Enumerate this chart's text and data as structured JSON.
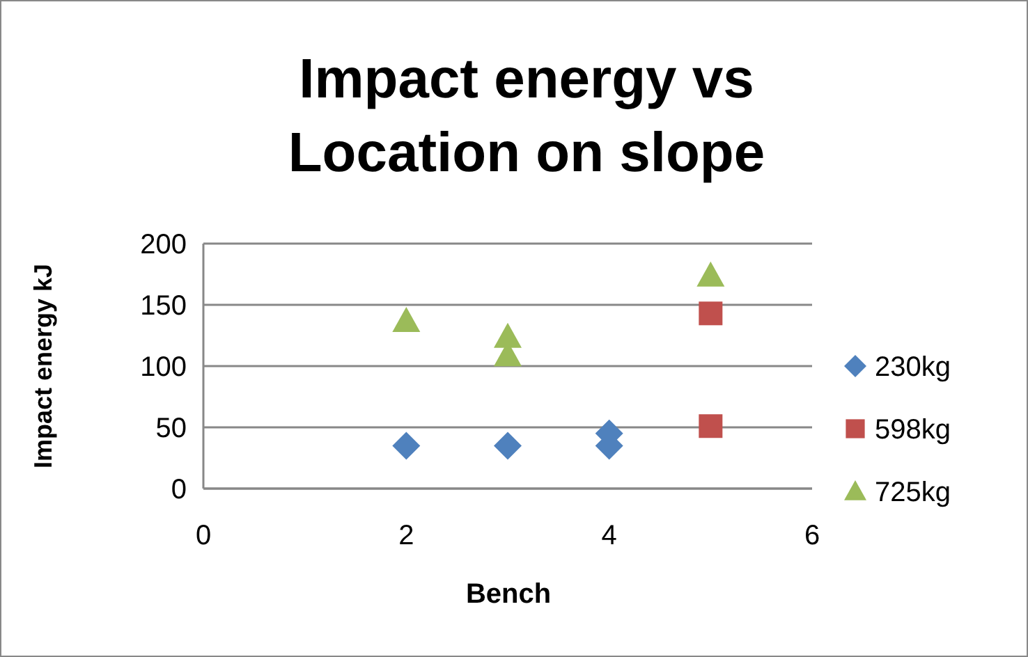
{
  "chart_data": {
    "type": "scatter",
    "title": "Impact energy vs Location on slope",
    "xlabel": "Bench",
    "ylabel": "Impact energy kJ",
    "xlim": [
      0,
      6
    ],
    "xticks": [
      0,
      2,
      4,
      6
    ],
    "ylim": [
      0,
      200
    ],
    "yticks": [
      0,
      50,
      100,
      150,
      200
    ],
    "grid": "y",
    "legend": "right",
    "series": [
      {
        "name": "230kg",
        "color": "#4f81bd",
        "marker": "diamond",
        "x": [
          2,
          3,
          4,
          4
        ],
        "values": [
          35,
          35,
          45,
          35
        ]
      },
      {
        "name": "598kg",
        "color": "#c0504d",
        "marker": "square",
        "x": [
          5,
          5
        ],
        "values": [
          143,
          51
        ]
      },
      {
        "name": "725kg",
        "color": "#9bbb59",
        "marker": "triangle",
        "x": [
          2,
          3,
          3,
          5
        ],
        "values": [
          137,
          124,
          109,
          174
        ]
      }
    ]
  }
}
